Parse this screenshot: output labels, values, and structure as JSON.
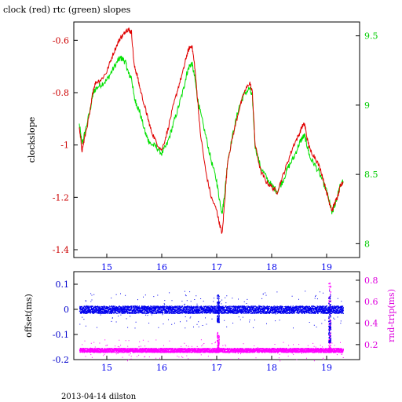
{
  "title": "clock (red) rtc (green) slopes",
  "footer": "2013-04-14 dilston",
  "colors": {
    "clock": "#e00000",
    "rtc": "#00e000",
    "offset": "#0000ee",
    "rndtrip": "#ff00ff",
    "axis": "#000000",
    "left_ticks": "#cc0000",
    "right_ticks": "#00cc00",
    "bottom_left_ticks": "#0000cc",
    "bottom_right_ticks": "#dd00dd"
  },
  "chart_data": [
    {
      "type": "line",
      "title": "clock (red) rtc (green) slopes",
      "xlabel": "",
      "ylabel": "clockslope",
      "y2label": "",
      "xlim": [
        14.4,
        19.6
      ],
      "ylim": [
        -1.43,
        -0.53
      ],
      "y2lim": [
        7.9,
        9.6
      ],
      "x_ticks": [
        15,
        16,
        17,
        18,
        19
      ],
      "y_ticks": [
        -0.6,
        -0.8,
        -1,
        -1.2,
        -1.4
      ],
      "y_tick_labels": [
        "-0.6",
        "-0.8",
        "-1",
        "-1.2",
        "-1.4"
      ],
      "y2_ticks": [
        9.5,
        9,
        8.5,
        8
      ],
      "y2_tick_labels": [
        "9.5",
        "9",
        "8.5",
        "8"
      ],
      "series": [
        {
          "name": "clock",
          "axis": "left",
          "x": [
            14.5,
            14.55,
            14.6,
            14.7,
            14.75,
            14.8,
            14.9,
            15.0,
            15.1,
            15.2,
            15.25,
            15.3,
            15.35,
            15.4,
            15.45,
            15.5,
            15.55,
            15.6,
            15.7,
            15.75,
            15.8,
            15.9,
            16.0,
            16.1,
            16.2,
            16.3,
            16.4,
            16.45,
            16.5,
            16.55,
            16.6,
            16.65,
            16.7,
            16.8,
            16.9,
            17.0,
            17.05,
            17.1,
            17.15,
            17.2,
            17.3,
            17.4,
            17.5,
            17.6,
            17.65,
            17.7,
            17.8,
            17.9,
            18.0,
            18.1,
            18.2,
            18.3,
            18.4,
            18.5,
            18.55,
            18.6,
            18.65,
            18.7,
            18.8,
            18.9,
            19.0,
            19.05,
            19.1,
            19.15,
            19.2,
            19.25,
            19.3
          ],
          "y": [
            -0.94,
            -1.02,
            -0.97,
            -0.87,
            -0.79,
            -0.76,
            -0.75,
            -0.72,
            -0.66,
            -0.61,
            -0.59,
            -0.58,
            -0.56,
            -0.56,
            -0.57,
            -0.7,
            -0.73,
            -0.78,
            -0.86,
            -0.9,
            -0.94,
            -0.99,
            -1.02,
            -0.95,
            -0.86,
            -0.78,
            -0.71,
            -0.66,
            -0.63,
            -0.62,
            -0.7,
            -0.82,
            -0.95,
            -1.1,
            -1.2,
            -1.25,
            -1.3,
            -1.34,
            -1.2,
            -1.06,
            -0.96,
            -0.87,
            -0.8,
            -0.76,
            -0.8,
            -1.0,
            -1.1,
            -1.14,
            -1.16,
            -1.18,
            -1.12,
            -1.06,
            -1.0,
            -0.96,
            -0.93,
            -0.92,
            -0.98,
            -1.02,
            -1.05,
            -1.1,
            -1.18,
            -1.22,
            -1.25,
            -1.22,
            -1.2,
            -1.16,
            -1.14
          ]
        },
        {
          "name": "rtc",
          "axis": "right",
          "x": [
            14.5,
            14.55,
            14.6,
            14.7,
            14.75,
            14.8,
            14.9,
            15.0,
            15.1,
            15.2,
            15.25,
            15.3,
            15.35,
            15.4,
            15.45,
            15.5,
            15.55,
            15.6,
            15.7,
            15.75,
            15.8,
            15.9,
            16.0,
            16.1,
            16.2,
            16.3,
            16.4,
            16.45,
            16.5,
            16.55,
            16.6,
            16.65,
            16.7,
            16.8,
            16.9,
            17.0,
            17.05,
            17.1,
            17.15,
            17.2,
            17.3,
            17.4,
            17.5,
            17.6,
            17.65,
            17.7,
            17.8,
            17.9,
            18.0,
            18.1,
            18.2,
            18.3,
            18.4,
            18.5,
            18.55,
            18.6,
            18.65,
            18.7,
            18.8,
            18.9,
            19.0,
            19.05,
            19.1,
            19.15,
            19.2,
            19.25,
            19.3
          ],
          "y": [
            8.86,
            8.72,
            8.8,
            8.97,
            9.08,
            9.12,
            9.15,
            9.18,
            9.25,
            9.32,
            9.34,
            9.33,
            9.3,
            9.22,
            9.2,
            9.05,
            9.0,
            8.95,
            8.8,
            8.75,
            8.72,
            8.7,
            8.65,
            8.72,
            8.85,
            8.98,
            9.12,
            9.22,
            9.28,
            9.3,
            9.2,
            9.05,
            8.95,
            8.78,
            8.6,
            8.45,
            8.32,
            8.22,
            8.38,
            8.6,
            8.8,
            8.98,
            9.08,
            9.12,
            9.05,
            8.7,
            8.55,
            8.48,
            8.42,
            8.38,
            8.45,
            8.55,
            8.62,
            8.72,
            8.76,
            8.78,
            8.7,
            8.62,
            8.56,
            8.48,
            8.38,
            8.3,
            8.22,
            8.28,
            8.35,
            8.42,
            8.45
          ]
        }
      ]
    },
    {
      "type": "scatter",
      "xlabel": "",
      "ylabel": "offset(ms)",
      "y2label": "rnd-trip(ms)",
      "xlim": [
        14.4,
        19.6
      ],
      "ylim": [
        -0.2,
        0.15
      ],
      "y2lim": [
        0.06,
        0.88
      ],
      "x_ticks": [
        15,
        16,
        17,
        18,
        19
      ],
      "y_ticks": [
        0.1,
        0,
        -0.1,
        -0.2
      ],
      "y_tick_labels": [
        "0.1",
        "0",
        "-0.1",
        "-0.2"
      ],
      "y2_ticks": [
        0.8,
        0.6,
        0.4,
        0.2
      ],
      "y2_tick_labels": [
        "0.8",
        "0.6",
        "0.4",
        "0.2"
      ],
      "series": [
        {
          "name": "offset",
          "axis": "left",
          "x_range": [
            14.5,
            19.3
          ],
          "y_center": 0.0,
          "y_spread": 0.015,
          "excursions": [
            {
              "x": 17.02,
              "y_min": -0.05,
              "y_max": 0.06
            },
            {
              "x": 19.05,
              "y_min": -0.13,
              "y_max": 0.06
            }
          ]
        },
        {
          "name": "rnd-trip",
          "axis": "right",
          "x_range": [
            14.5,
            19.3
          ],
          "y_center": 0.15,
          "y_spread": 0.02,
          "excursions": [
            {
              "x": 17.02,
              "y_min": 0.13,
              "y_max": 0.32
            },
            {
              "x": 19.05,
              "y_min": 0.13,
              "y_max": 0.78
            }
          ]
        }
      ]
    }
  ]
}
